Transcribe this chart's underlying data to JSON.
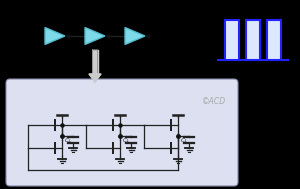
{
  "bg_color": "#000000",
  "box_bg": "#dce0f0",
  "box_edge": "#8888aa",
  "triangle_fill": "#7dd8e8",
  "triangle_edge": "#55bbcc",
  "pulse_fill": "#dde8ff",
  "pulse_edge": "#2222ff",
  "transistor_color": "#222222",
  "wire_color": "#222222",
  "dot_color": "#111111",
  "arrow_fill": "#cccccc",
  "arrow_edge": "#999999",
  "copyright_color": "#aaaaaa",
  "copyright_text": "©ACD",
  "figsize": [
    3.0,
    1.89
  ],
  "dpi": 100
}
